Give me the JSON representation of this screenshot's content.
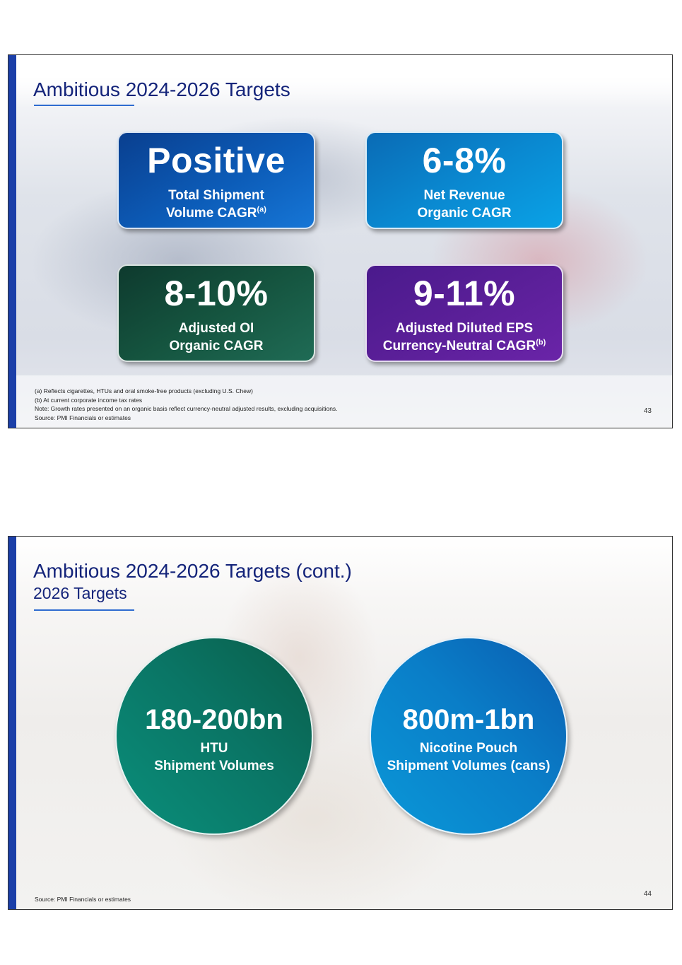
{
  "slide1": {
    "title": "Ambitious 2024-2026 Targets",
    "cards": [
      {
        "value": "Positive",
        "label_line1": "Total Shipment",
        "label_line2": "Volume CAGR",
        "sup": "(a)",
        "color": "#0c5cb8"
      },
      {
        "value": "6-8%",
        "label_line1": "Net Revenue",
        "label_line2": "Organic CAGR",
        "color": "#0a88d0"
      },
      {
        "value": "8-10%",
        "label_line1": "Adjusted OI",
        "label_line2": "Organic CAGR",
        "color": "#15543f"
      },
      {
        "value": "9-11%",
        "label_line1": "Adjusted Diluted EPS",
        "label_line2": "Currency-Neutral CAGR",
        "sup": "(b)",
        "color": "#5a1f98"
      }
    ],
    "footnotes": [
      "(a) Reflects cigarettes, HTUs and oral smoke-free products (excluding U.S. Chew)",
      "(b) At current corporate income tax rates",
      "Note: Growth rates presented on an organic basis reflect currency-neutral adjusted results, excluding acquisitions.",
      "Source: PMI Financials or estimates"
    ],
    "page_number": "43"
  },
  "slide2": {
    "title": "Ambitious 2024-2026 Targets (cont.)",
    "subtitle": "2026 Targets",
    "circles": [
      {
        "value": "180-200bn",
        "label_line1": "HTU",
        "label_line2": "Shipment Volumes",
        "color": "#0a7565"
      },
      {
        "value": "800m-1bn",
        "label_line1": "Nicotine Pouch",
        "label_line2": "Shipment Volumes (cans)",
        "color": "#0a7ec8"
      }
    ],
    "source": "Source: PMI Financials or estimates",
    "page_number": "44"
  },
  "colors": {
    "title": "#14247a",
    "accent_bar": "#1b3fa8",
    "title_rule": "#2e6bd0"
  }
}
